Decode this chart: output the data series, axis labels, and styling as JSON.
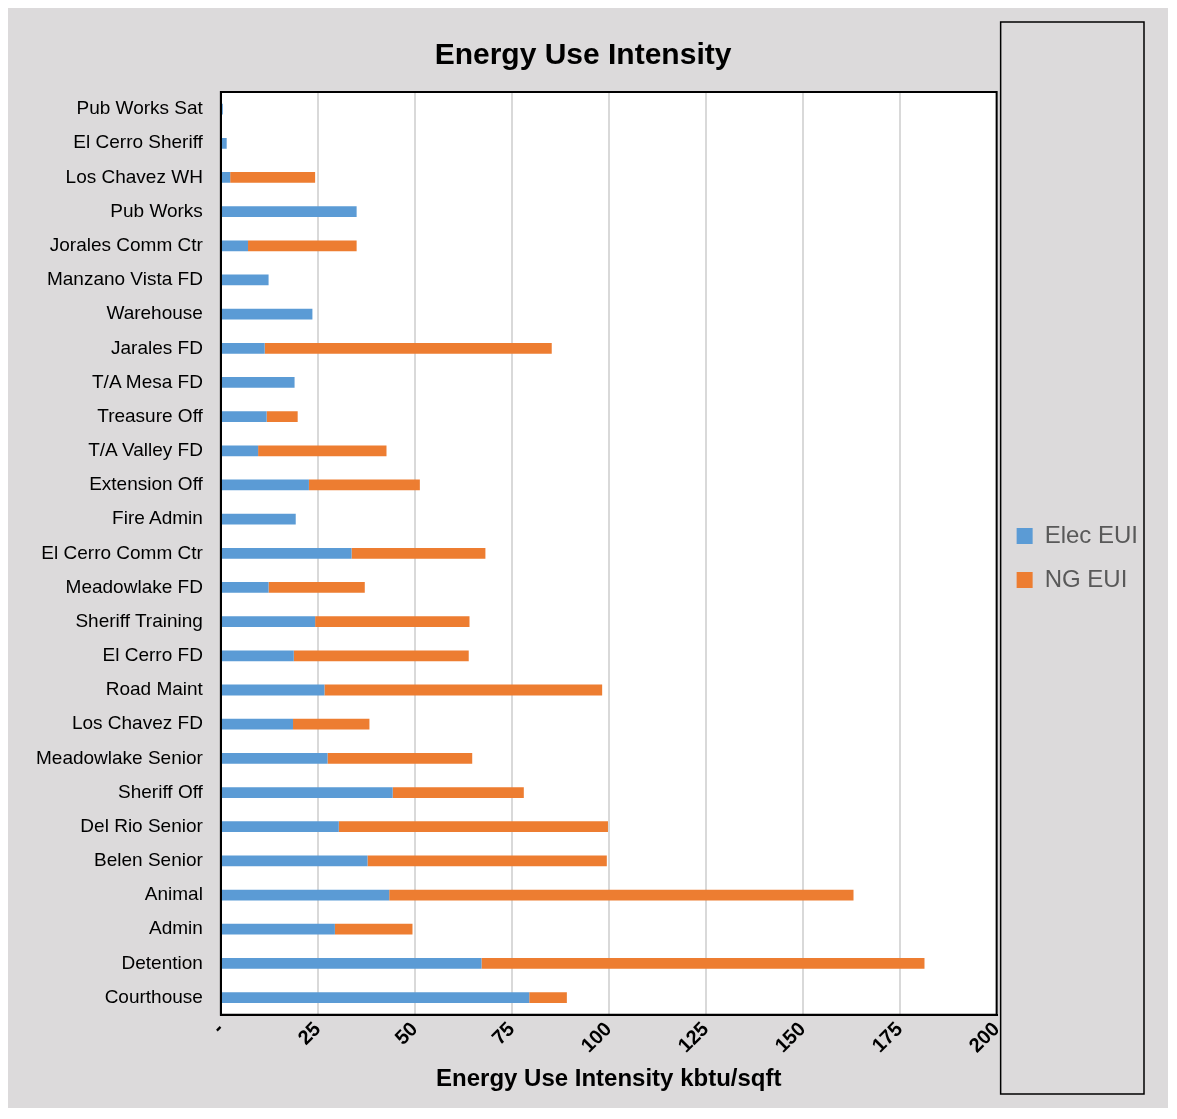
{
  "chart_data": {
    "type": "bar",
    "orientation": "horizontal",
    "stacked": true,
    "title": "Energy Use Intensity",
    "xlabel": "Energy Use Intensity kbtu/sqft",
    "categories": [
      "Pub Works Sat",
      "El Cerro Sheriff",
      "Los Chavez WH",
      "Pub Works",
      "Jorales Comm Ctr",
      "Manzano Vista FD",
      "Warehouse",
      "Jarales FD",
      "T/A Mesa FD",
      "Treasure Off",
      "T/A Valley FD",
      "Extension Off",
      "Fire Admin",
      "El Cerro Comm Ctr",
      "Meadowlake FD",
      "Sheriff Training",
      "El Cerro FD",
      "Road Maint",
      "Los Chavez FD",
      "Meadowlake Senior",
      "Sheriff Off",
      "Del Rio Senior",
      "Belen Senior",
      "Animal",
      "Admin",
      "Detention",
      "Courthouse"
    ],
    "series": [
      {
        "name": "Elec EUI",
        "color": "#5b9bd5",
        "values": [
          0.5,
          1.5,
          2.4,
          35,
          7,
          12.3,
          23.6,
          11.3,
          19,
          11.8,
          9.6,
          22.7,
          19.3,
          33.7,
          12.3,
          24.3,
          18.8,
          26.7,
          18.6,
          27.5,
          44.3,
          30.4,
          37.8,
          43.4,
          29.4,
          67.2,
          79.5
        ]
      },
      {
        "name": "NG EUI",
        "color": "#ed7d31",
        "values": [
          0,
          0,
          21.9,
          0,
          28,
          0,
          0,
          74,
          0,
          8,
          33.1,
          28.6,
          0,
          34.5,
          24.8,
          39.8,
          45.1,
          71.6,
          19.7,
          37.3,
          33.8,
          69.4,
          61.7,
          119.7,
          20,
          114.2,
          9.7
        ]
      }
    ],
    "xlim": [
      0,
      200
    ],
    "xticks": [
      {
        "value": 0,
        "label": "-"
      },
      25,
      50,
      75,
      100,
      125,
      150,
      175,
      200
    ],
    "grid": "x",
    "legend": "right"
  }
}
